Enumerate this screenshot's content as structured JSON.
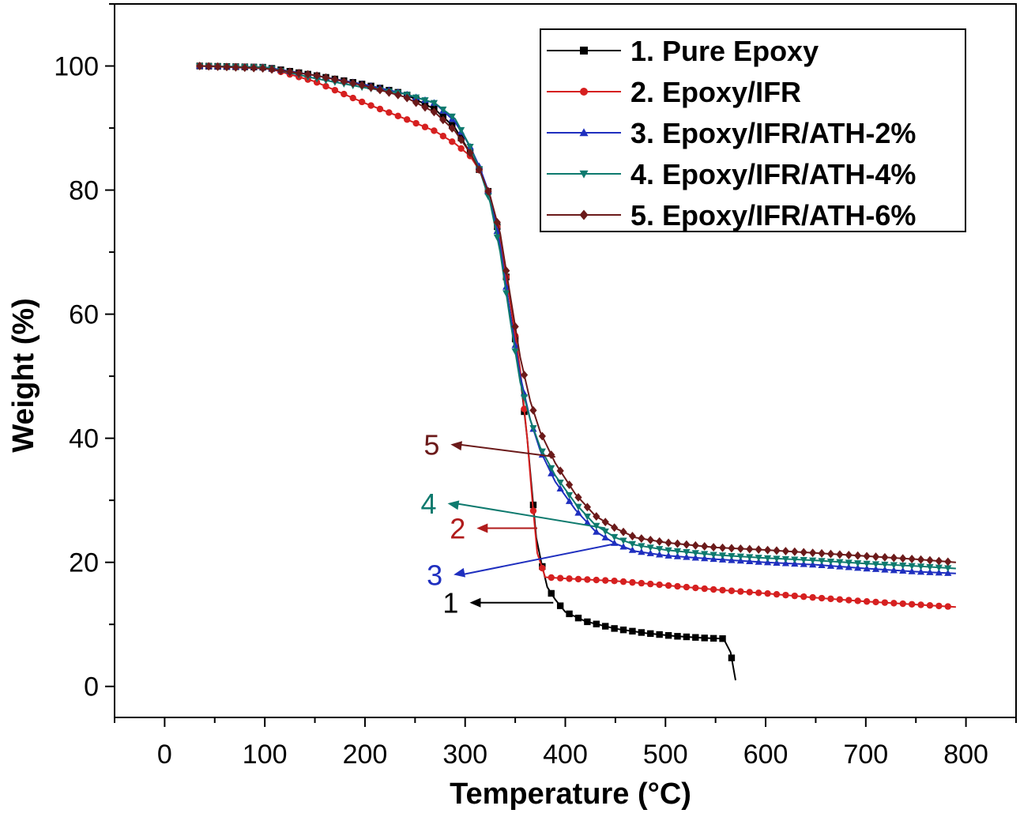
{
  "chart_data": {
    "type": "line",
    "xlabel": "Temperature (°C)",
    "ylabel": "Weight (%)",
    "xlim": [
      -50,
      850
    ],
    "ylim": [
      -5,
      110
    ],
    "xticks": [
      0,
      100,
      200,
      300,
      400,
      500,
      600,
      700,
      800
    ],
    "yticks": [
      0,
      20,
      40,
      60,
      80,
      100
    ],
    "grid": false,
    "legend": "top-right",
    "series": [
      {
        "name": "1. Pure Epoxy",
        "color": "#000000",
        "marker": "square",
        "points": [
          [
            35,
            100
          ],
          [
            100,
            99.8
          ],
          [
            150,
            98.5
          ],
          [
            200,
            97
          ],
          [
            240,
            95.5
          ],
          [
            270,
            93
          ],
          [
            290,
            90
          ],
          [
            305,
            86
          ],
          [
            315,
            83
          ],
          [
            325,
            79
          ],
          [
            335,
            72
          ],
          [
            345,
            62
          ],
          [
            355,
            50
          ],
          [
            362,
            40
          ],
          [
            367,
            31
          ],
          [
            371,
            24
          ],
          [
            376,
            20
          ],
          [
            382,
            16
          ],
          [
            390,
            14
          ],
          [
            400,
            12
          ],
          [
            420,
            10.5
          ],
          [
            450,
            9.3
          ],
          [
            480,
            8.6
          ],
          [
            510,
            8.1
          ],
          [
            540,
            7.8
          ],
          [
            558,
            7.7
          ],
          [
            565,
            5.5
          ],
          [
            570,
            1
          ]
        ]
      },
      {
        "name": "2. Epoxy/IFR",
        "color": "#d62020",
        "marker": "circle",
        "points": [
          [
            35,
            100
          ],
          [
            100,
            99.8
          ],
          [
            150,
            97.5
          ],
          [
            200,
            94
          ],
          [
            240,
            91.5
          ],
          [
            270,
            89.5
          ],
          [
            290,
            87.5
          ],
          [
            305,
            85.5
          ],
          [
            315,
            83
          ],
          [
            325,
            79
          ],
          [
            335,
            72
          ],
          [
            345,
            62
          ],
          [
            355,
            51
          ],
          [
            362,
            40
          ],
          [
            367,
            30
          ],
          [
            372,
            21.5
          ],
          [
            380,
            17.6
          ],
          [
            400,
            17.4
          ],
          [
            450,
            17
          ],
          [
            500,
            16.3
          ],
          [
            550,
            15.6
          ],
          [
            600,
            15
          ],
          [
            650,
            14.3
          ],
          [
            700,
            13.7
          ],
          [
            750,
            13.2
          ],
          [
            790,
            12.8
          ]
        ]
      },
      {
        "name": "3. Epoxy/IFR/ATH-2%",
        "color": "#1f2fbf",
        "marker": "triangle-up",
        "points": [
          [
            35,
            100
          ],
          [
            100,
            99.8
          ],
          [
            150,
            98.5
          ],
          [
            200,
            97
          ],
          [
            240,
            95.5
          ],
          [
            270,
            94
          ],
          [
            290,
            91
          ],
          [
            305,
            87
          ],
          [
            315,
            83.5
          ],
          [
            325,
            79
          ],
          [
            335,
            71
          ],
          [
            345,
            60
          ],
          [
            355,
            50
          ],
          [
            365,
            43
          ],
          [
            375,
            38
          ],
          [
            390,
            33
          ],
          [
            410,
            28.5
          ],
          [
            430,
            25
          ],
          [
            450,
            23
          ],
          [
            470,
            21.8
          ],
          [
            500,
            21.1
          ],
          [
            550,
            20.5
          ],
          [
            600,
            20
          ],
          [
            650,
            19.6
          ],
          [
            700,
            19
          ],
          [
            750,
            18.5
          ],
          [
            790,
            18.2
          ]
        ]
      },
      {
        "name": "4. Epoxy/IFR/ATH-4%",
        "color": "#0e7a6e",
        "marker": "triangle-down",
        "points": [
          [
            35,
            100
          ],
          [
            100,
            99.8
          ],
          [
            150,
            98
          ],
          [
            200,
            96.5
          ],
          [
            240,
            95.5
          ],
          [
            270,
            94
          ],
          [
            290,
            91.5
          ],
          [
            305,
            87
          ],
          [
            315,
            83
          ],
          [
            325,
            78
          ],
          [
            335,
            70
          ],
          [
            345,
            59
          ],
          [
            355,
            49
          ],
          [
            365,
            43
          ],
          [
            375,
            38.5
          ],
          [
            390,
            34
          ],
          [
            410,
            29.5
          ],
          [
            430,
            26
          ],
          [
            450,
            24
          ],
          [
            470,
            22.8
          ],
          [
            500,
            22
          ],
          [
            550,
            21.2
          ],
          [
            600,
            20.7
          ],
          [
            650,
            20.3
          ],
          [
            700,
            19.8
          ],
          [
            750,
            19.4
          ],
          [
            790,
            19
          ]
        ]
      },
      {
        "name": "5. Epoxy/IFR/ATH-6%",
        "color": "#6b1a1a",
        "marker": "diamond",
        "points": [
          [
            35,
            100
          ],
          [
            100,
            99.6
          ],
          [
            150,
            98.5
          ],
          [
            200,
            96.8
          ],
          [
            240,
            95
          ],
          [
            270,
            92.5
          ],
          [
            290,
            89.5
          ],
          [
            305,
            86
          ],
          [
            315,
            83
          ],
          [
            325,
            79
          ],
          [
            335,
            73
          ],
          [
            345,
            63
          ],
          [
            355,
            53
          ],
          [
            365,
            46
          ],
          [
            375,
            41
          ],
          [
            390,
            36
          ],
          [
            410,
            31
          ],
          [
            430,
            27.5
          ],
          [
            450,
            25.5
          ],
          [
            470,
            24
          ],
          [
            500,
            23.2
          ],
          [
            550,
            22.4
          ],
          [
            600,
            22
          ],
          [
            650,
            21.5
          ],
          [
            700,
            21
          ],
          [
            750,
            20.5
          ],
          [
            790,
            20
          ]
        ]
      }
    ],
    "annotations": [
      {
        "label": "1",
        "color": "#000000",
        "text_at": [
          284,
          13.5
        ],
        "line_to": [
          388,
          13.5
        ]
      },
      {
        "label": "2",
        "color": "#b01b1b",
        "text_at": [
          291,
          25.5
        ],
        "line_to": [
          372,
          25.5
        ]
      },
      {
        "label": "3",
        "color": "#1f2fbf",
        "text_at": [
          268,
          18
        ],
        "line_to": [
          450,
          23
        ]
      },
      {
        "label": "4",
        "color": "#0e7a6e",
        "text_at": [
          262,
          29.5
        ],
        "line_to": [
          440,
          25.5
        ]
      },
      {
        "label": "5",
        "color": "#6b1a1a",
        "text_at": [
          265,
          39
        ],
        "line_to": [
          390,
          37
        ]
      }
    ]
  }
}
